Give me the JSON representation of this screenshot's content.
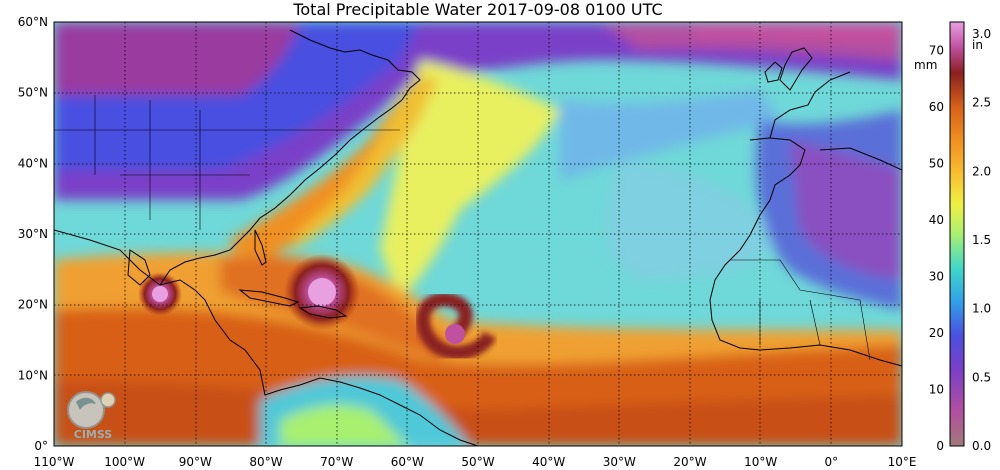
{
  "title": "Total Precipitable Water  2017-09-08 0100 UTC",
  "lat_labels": [
    "60°N",
    "50°N",
    "40°N",
    "30°N",
    "20°N",
    "10°N",
    "0°"
  ],
  "lon_labels": [
    "110°W",
    "100°W",
    "90°W",
    "80°W",
    "70°W",
    "60°W",
    "50°W",
    "40°W",
    "30°W",
    "20°W",
    "10°W",
    "0°",
    "10°E"
  ],
  "colorbar": {
    "units_mm": "mm",
    "units_in": "in",
    "mm_ticks": [
      "70",
      "60",
      "50",
      "40",
      "30",
      "20",
      "10",
      "0"
    ],
    "in_ticks": [
      "3.0",
      "2.5",
      "2.0",
      "1.5",
      "1.0",
      "0.5",
      "0.0"
    ],
    "colors": [
      "#a07a78",
      "#b34fa0",
      "#7a40c8",
      "#4a50e0",
      "#30a0e8",
      "#40d8c8",
      "#a8f070",
      "#f0f040",
      "#f8c030",
      "#f09020",
      "#d86018",
      "#a83010",
      "#8a2020",
      "#c050a0",
      "#e8a0e0"
    ]
  },
  "logo_text": "CIMSS"
}
